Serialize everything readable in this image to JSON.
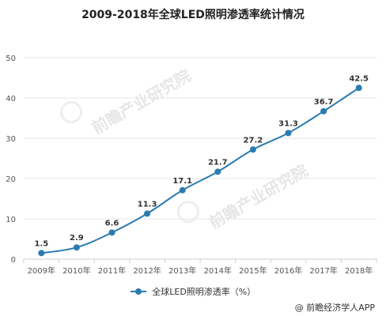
{
  "title": "2009-2018年全球LED照明渗透率统计情况",
  "source": "@ 前瞻经济学人APP",
  "watermark": "前瞻产业研究院",
  "colors": {
    "series": "#2b7bb0",
    "axis": "#cccccc",
    "grid": "#e6e6e6",
    "label": "#333333"
  },
  "chart_data": {
    "type": "line",
    "title": "2009-2018年全球LED照明渗透率统计情况",
    "categories": [
      "2009年",
      "2010年",
      "2011年",
      "2012年",
      "2013年",
      "2014年",
      "2015年",
      "2016年",
      "2017年",
      "2018年"
    ],
    "series": [
      {
        "name": "全球LED照明渗透率（%）",
        "values": [
          1.5,
          2.9,
          6.6,
          11.3,
          17.1,
          21.7,
          27.2,
          31.3,
          36.7,
          42.5
        ]
      }
    ],
    "ylim": [
      0,
      50
    ],
    "yticks": [
      0,
      10,
      20,
      30,
      40,
      50
    ],
    "xlabel": "",
    "ylabel": "",
    "grid": "horizontal",
    "legend_position": "bottom-center",
    "smooth": true,
    "data_labels": true
  }
}
